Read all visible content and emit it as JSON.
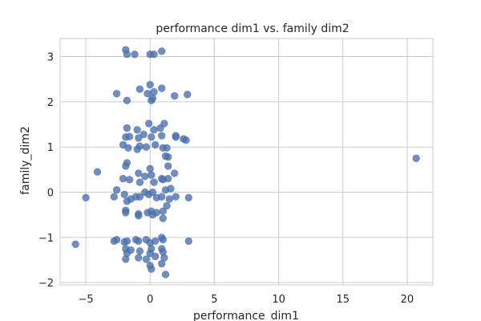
{
  "chart_data": {
    "type": "scatter",
    "title": "performance dim1 vs. family dim2",
    "xlabel": "performance_dim1",
    "ylabel": "family_dim2",
    "xlim": [
      -7,
      22
    ],
    "ylim": [
      -2.05,
      3.4
    ],
    "xticks": [
      -5,
      0,
      5,
      10,
      15,
      20
    ],
    "yticks": [
      -2,
      -1,
      0,
      1,
      2,
      3
    ],
    "xtick_labels": [
      "−5",
      "0",
      "5",
      "10",
      "15",
      "20"
    ],
    "ytick_labels": [
      "−2",
      "−1",
      "0",
      "1",
      "2",
      "3"
    ],
    "grid": true,
    "point_color": "#4c72b0",
    "points": [
      [
        -1.9,
        3.15
      ],
      [
        -1.8,
        3.05
      ],
      [
        -1.2,
        3.05
      ],
      [
        0.0,
        3.05
      ],
      [
        0.3,
        3.05
      ],
      [
        0.9,
        3.12
      ],
      [
        -2.6,
        2.18
      ],
      [
        -1.8,
        2.03
      ],
      [
        -0.8,
        2.28
      ],
      [
        -0.2,
        2.18
      ],
      [
        0.0,
        2.38
      ],
      [
        0.1,
        2.03
      ],
      [
        0.2,
        2.08
      ],
      [
        0.3,
        2.22
      ],
      [
        0.9,
        2.3
      ],
      [
        1.9,
        2.13
      ],
      [
        2.9,
        2.16
      ],
      [
        -1.8,
        1.42
      ],
      [
        -1.9,
        1.22
      ],
      [
        -1.6,
        1.23
      ],
      [
        -2.1,
        1.05
      ],
      [
        -1.7,
        0.98
      ],
      [
        -1.0,
        1.38
      ],
      [
        -0.9,
        1.2
      ],
      [
        -0.8,
        1.02
      ],
      [
        -0.5,
        1.28
      ],
      [
        -0.3,
        1.0
      ],
      [
        -0.1,
        1.52
      ],
      [
        0.1,
        1.22
      ],
      [
        0.3,
        1.38
      ],
      [
        0.4,
        1.05
      ],
      [
        0.8,
        1.42
      ],
      [
        0.9,
        1.25
      ],
      [
        1.1,
        1.52
      ],
      [
        1.0,
        0.98
      ],
      [
        1.3,
        0.98
      ],
      [
        2.0,
        1.22
      ],
      [
        2.0,
        1.25
      ],
      [
        2.6,
        1.18
      ],
      [
        2.8,
        1.15
      ],
      [
        -1.0,
        0.95
      ],
      [
        -4.1,
        0.45
      ],
      [
        -1.8,
        0.65
      ],
      [
        -1.9,
        0.58
      ],
      [
        -2.1,
        0.3
      ],
      [
        -1.6,
        0.28
      ],
      [
        -0.9,
        0.42
      ],
      [
        -0.8,
        0.22
      ],
      [
        -0.4,
        0.35
      ],
      [
        0.0,
        0.52
      ],
      [
        0.1,
        0.38
      ],
      [
        0.3,
        0.22
      ],
      [
        0.9,
        0.3
      ],
      [
        1.0,
        0.28
      ],
      [
        1.4,
        0.3
      ],
      [
        1.9,
        0.42
      ],
      [
        1.4,
        0.58
      ],
      [
        1.4,
        0.78
      ],
      [
        1.2,
        0.8
      ],
      [
        -5.0,
        -0.12
      ],
      [
        -2.6,
        0.05
      ],
      [
        -2.8,
        -0.1
      ],
      [
        -2.0,
        -0.05
      ],
      [
        -1.8,
        -0.2
      ],
      [
        -1.5,
        -0.15
      ],
      [
        -1.1,
        -0.1
      ],
      [
        -0.8,
        -0.1
      ],
      [
        -0.4,
        0.0
      ],
      [
        -0.1,
        -0.05
      ],
      [
        0.2,
        0.0
      ],
      [
        0.5,
        -0.12
      ],
      [
        0.9,
        -0.1
      ],
      [
        1.2,
        0.05
      ],
      [
        1.5,
        -0.15
      ],
      [
        1.6,
        0.08
      ],
      [
        2.0,
        -0.1
      ],
      [
        3.0,
        -0.12
      ],
      [
        -1.9,
        -0.4
      ],
      [
        -1.9,
        -0.45
      ],
      [
        -0.9,
        -0.48
      ],
      [
        -0.9,
        -0.52
      ],
      [
        -0.2,
        -0.45
      ],
      [
        0.1,
        -0.42
      ],
      [
        0.2,
        -0.5
      ],
      [
        0.5,
        -0.45
      ],
      [
        1.0,
        -0.58
      ],
      [
        1.0,
        -0.42
      ],
      [
        1.3,
        -0.3
      ],
      [
        -5.8,
        -1.15
      ],
      [
        -2.8,
        -1.08
      ],
      [
        -2.6,
        -1.05
      ],
      [
        -2.0,
        -1.1
      ],
      [
        -1.8,
        -1.08
      ],
      [
        -1.1,
        -1.05
      ],
      [
        -0.9,
        -1.08
      ],
      [
        -0.3,
        -1.05
      ],
      [
        0.0,
        -1.12
      ],
      [
        0.4,
        -1.08
      ],
      [
        0.9,
        -1.0
      ],
      [
        1.0,
        -1.05
      ],
      [
        3.0,
        -1.08
      ],
      [
        -1.9,
        -1.25
      ],
      [
        -1.8,
        -1.35
      ],
      [
        -1.9,
        -1.48
      ],
      [
        -1.5,
        -1.28
      ],
      [
        -0.9,
        -1.45
      ],
      [
        -0.8,
        -1.3
      ],
      [
        -0.3,
        -1.48
      ],
      [
        0.0,
        -1.35
      ],
      [
        0.1,
        -1.25
      ],
      [
        0.4,
        -1.42
      ],
      [
        0.9,
        -1.25
      ],
      [
        1.0,
        -1.32
      ],
      [
        1.1,
        -1.45
      ],
      [
        0.9,
        -1.58
      ],
      [
        0.0,
        -1.62
      ],
      [
        0.1,
        -1.7
      ],
      [
        1.2,
        -1.82
      ],
      [
        20.7,
        0.75
      ]
    ]
  }
}
